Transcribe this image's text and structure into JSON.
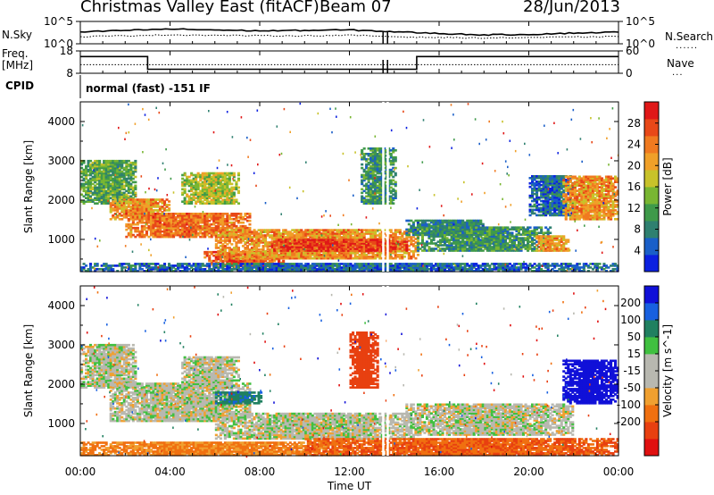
{
  "header": {
    "station": "Christmas Valley East (fitACF)",
    "beam": "Beam 07",
    "date": "28/Jun/2013"
  },
  "panels": {
    "nsky_label": "N.Sky",
    "nsearch_label": "N.Search",
    "freq_label_1": "Freq.",
    "freq_label_2": "[MHz]",
    "nave_label": "Nave",
    "cpid_label": "CPID",
    "cpid_text": "normal (fast) -151 IF"
  },
  "chart_data": [
    {
      "type": "line",
      "name": "noise-panel",
      "left_ticks": [
        "10^5",
        "10^0"
      ],
      "right_ticks": [
        "10^5",
        "10^0"
      ],
      "series": [
        {
          "name": "N.Sky",
          "style": "solid",
          "x": [
            0,
            2,
            4,
            6,
            8,
            10,
            12,
            14,
            16,
            18,
            20,
            22,
            24
          ],
          "log10_values": [
            2.6,
            3.0,
            3.3,
            3.1,
            2.9,
            3.0,
            3.1,
            2.7,
            2.3,
            2.0,
            2.1,
            2.4,
            2.6
          ]
        },
        {
          "name": "N.Search",
          "style": "dotted",
          "x": [
            0,
            2,
            4,
            6,
            8,
            10,
            12,
            14,
            16,
            18,
            20,
            22,
            24
          ],
          "log10_values": [
            1.6,
            1.8,
            2.0,
            1.9,
            1.8,
            1.8,
            1.9,
            1.6,
            1.4,
            1.3,
            1.4,
            1.5,
            1.6
          ]
        }
      ]
    },
    {
      "type": "line",
      "name": "frequency-panel",
      "left_ticks": [
        "18",
        "8"
      ],
      "right_ticks": [
        "60",
        "0"
      ],
      "series": [
        {
          "name": "Freq.",
          "units": "MHz",
          "style": "solid",
          "x": [
            0,
            3,
            3,
            15,
            15,
            24
          ],
          "values": [
            15.5,
            15.5,
            9.8,
            9.8,
            15.5,
            15.5
          ]
        },
        {
          "name": "Nave",
          "style": "dotted",
          "x": [
            0,
            24
          ],
          "values": [
            23,
            23
          ]
        }
      ],
      "gaps_hours": [
        13.5,
        13.7
      ]
    },
    {
      "type": "heatmap",
      "name": "power",
      "ylabel": "Slant Range [km]",
      "ylim": [
        180,
        4500
      ],
      "yticks": [
        1000,
        2000,
        3000,
        4000
      ],
      "colorbar_label": "Power [dB]",
      "colorbar_ticks": [
        4,
        8,
        12,
        16,
        20,
        24,
        28
      ],
      "colorbar_colors": [
        "#0b20e0",
        "#1a5fc8",
        "#2f8070",
        "#3f9a4a",
        "#79b632",
        "#c8c22a",
        "#f0a028",
        "#f07a20",
        "#e84818",
        "#e01818"
      ],
      "vmin": 0,
      "vmax": 32,
      "echo_regions": [
        {
          "t0": 0.0,
          "t1": 2.5,
          "r0": 1900,
          "r1": 3000,
          "level": 12
        },
        {
          "t0": 1.3,
          "t1": 4.0,
          "r0": 1500,
          "r1": 2000,
          "level": 22
        },
        {
          "t0": 2.0,
          "t1": 7.5,
          "r0": 1050,
          "r1": 1650,
          "level": 24
        },
        {
          "t0": 4.5,
          "t1": 7.0,
          "r0": 1900,
          "r1": 2700,
          "level": 16
        },
        {
          "t0": 5.5,
          "t1": 9.0,
          "r0": 300,
          "r1": 700,
          "level": 26
        },
        {
          "t0": 6.0,
          "t1": 15.0,
          "r0": 500,
          "r1": 1250,
          "level": 22
        },
        {
          "t0": 8.5,
          "t1": 14.5,
          "r0": 700,
          "r1": 1000,
          "level": 28
        },
        {
          "t0": 12.5,
          "t1": 14.0,
          "r0": 1900,
          "r1": 3300,
          "level": 10
        },
        {
          "t0": 14.5,
          "t1": 18.0,
          "r0": 1100,
          "r1": 1500,
          "level": 8
        },
        {
          "t0": 15.0,
          "t1": 21.0,
          "r0": 700,
          "r1": 1300,
          "level": 10
        },
        {
          "t0": 20.3,
          "t1": 21.8,
          "r0": 700,
          "r1": 1100,
          "level": 22
        },
        {
          "t0": 20.0,
          "t1": 22.0,
          "r0": 1600,
          "r1": 2600,
          "level": 6
        },
        {
          "t0": 21.5,
          "t1": 24.0,
          "r0": 1500,
          "r1": 2600,
          "level": 22
        },
        {
          "t0": 0.0,
          "t1": 24.0,
          "r0": 180,
          "r1": 400,
          "level": 6
        }
      ]
    },
    {
      "type": "heatmap",
      "name": "velocity",
      "ylabel": "Slant Range [km]",
      "ylim": [
        180,
        4500
      ],
      "yticks": [
        1000,
        2000,
        3000,
        4000
      ],
      "colorbar_label": "Velocity [m s^-1]",
      "colorbar_ticks": [
        200,
        100,
        50,
        15,
        -15,
        -50,
        -100,
        -200
      ],
      "colorbar_colors": [
        "#1010d8",
        "#1860e0",
        "#208060",
        "#40c040",
        "#b8b8b0",
        "#b8b8b0",
        "#f0a030",
        "#f07010",
        "#e84010",
        "#e01010"
      ],
      "echo_regions": [
        {
          "t0": 0.0,
          "t1": 2.5,
          "r0": 1900,
          "r1": 3000,
          "velocity": 0
        },
        {
          "t0": 1.3,
          "t1": 7.5,
          "r0": 1050,
          "r1": 2000,
          "velocity": 0
        },
        {
          "t0": 4.5,
          "t1": 7.0,
          "r0": 1900,
          "r1": 2700,
          "velocity": 0
        },
        {
          "t0": 6.0,
          "t1": 8.0,
          "r0": 1500,
          "r1": 1800,
          "velocity": 60
        },
        {
          "t0": 0.0,
          "t1": 12.0,
          "r0": 180,
          "r1": 500,
          "velocity": -40
        },
        {
          "t0": 6.0,
          "t1": 15.0,
          "r0": 600,
          "r1": 1250,
          "velocity": 0
        },
        {
          "t0": 10.0,
          "t1": 24.0,
          "r0": 180,
          "r1": 600,
          "velocity": -70
        },
        {
          "t0": 12.0,
          "t1": 13.2,
          "r0": 1900,
          "r1": 3300,
          "velocity": -120
        },
        {
          "t0": 14.5,
          "t1": 22.0,
          "r0": 700,
          "r1": 1500,
          "velocity": 0
        },
        {
          "t0": 21.5,
          "t1": 24.0,
          "r0": 1500,
          "r1": 2600,
          "velocity": 220
        }
      ]
    }
  ],
  "x_axis": {
    "xlabel": "Time UT",
    "xticks": [
      "00:00",
      "04:00",
      "08:00",
      "12:00",
      "16:00",
      "20:00",
      "00:00"
    ],
    "xlim_hours": [
      0,
      24
    ]
  }
}
